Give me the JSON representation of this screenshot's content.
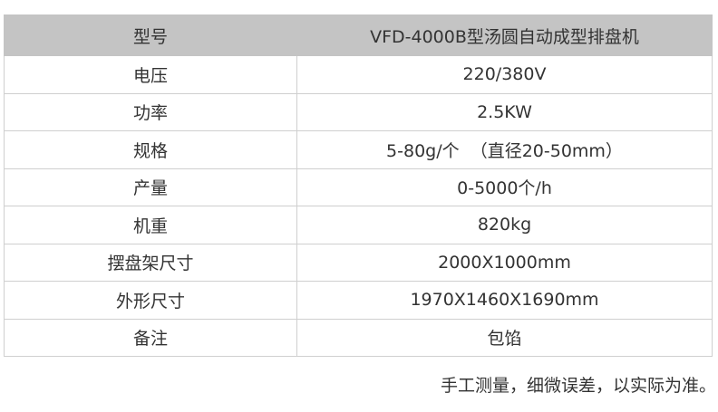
{
  "spec_table": {
    "header": {
      "label": "型号",
      "value": "VFD-4000B型汤圆自动成型排盘机"
    },
    "rows": [
      {
        "label": "电压",
        "value": "220/380V"
      },
      {
        "label": "功率",
        "value": "2.5KW"
      },
      {
        "label": "规格",
        "value": "5-80g/个  （直径20-50mm）"
      },
      {
        "label": "产量",
        "value": "0-5000个/h"
      },
      {
        "label": "机重",
        "value": "820kg"
      },
      {
        "label": "摆盘架尺寸",
        "value": "2000X1000mm"
      },
      {
        "label": "外形尺寸",
        "value": "1970X1460X1690mm"
      },
      {
        "label": "备注",
        "value": "包馅"
      }
    ],
    "header_bg": "#c4c4c4"
  },
  "footnote": "手工测量，细微误差，以实际为准。"
}
